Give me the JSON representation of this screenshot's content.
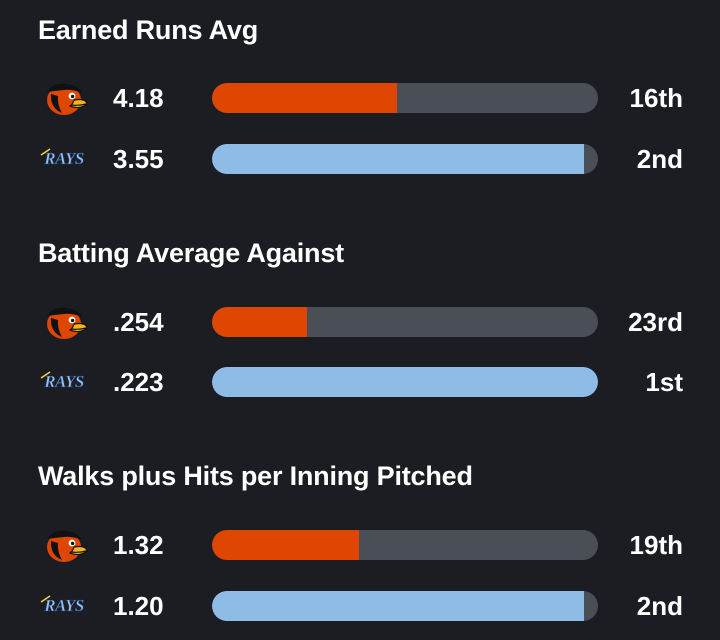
{
  "teams": {
    "orioles": {
      "logo_icon": "orioles-bird-icon",
      "color": "#df4601"
    },
    "rays": {
      "logo_icon": "rays-wordmark-icon",
      "logo_text": "RAYS",
      "color": "#8fbce6"
    }
  },
  "track_color": "#4a4f57",
  "chart_data": {
    "type": "bar",
    "stats": [
      {
        "title": "Earned Runs Avg",
        "rows": [
          {
            "team": "orioles",
            "value": "4.18",
            "rank": "16th",
            "fill": 0.48
          },
          {
            "team": "rays",
            "value": "3.55",
            "rank": "2nd",
            "fill": 0.965
          }
        ]
      },
      {
        "title": "Batting Average Against",
        "rows": [
          {
            "team": "orioles",
            "value": ".254",
            "rank": "23rd",
            "fill": 0.245
          },
          {
            "team": "rays",
            "value": ".223",
            "rank": "1st",
            "fill": 1.0
          }
        ]
      },
      {
        "title": "Walks plus Hits per Inning Pitched",
        "rows": [
          {
            "team": "orioles",
            "value": "1.32",
            "rank": "19th",
            "fill": 0.38
          },
          {
            "team": "rays",
            "value": "1.20",
            "rank": "2nd",
            "fill": 0.965
          }
        ]
      }
    ]
  }
}
